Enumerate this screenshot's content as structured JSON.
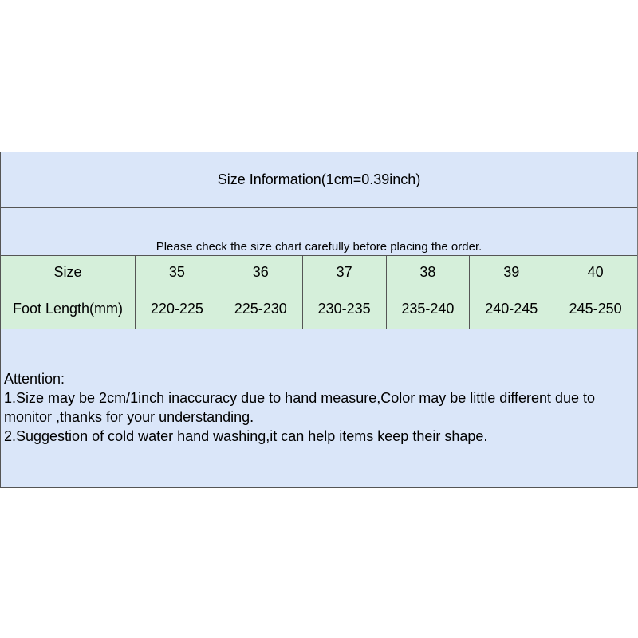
{
  "title": "Size Information(1cm=0.39inch)",
  "notice": "Please check the size chart carefully before placing the order.",
  "table": {
    "size_row": [
      "Size",
      "35",
      "36",
      "37",
      "38",
      "39",
      "40"
    ],
    "length_row": [
      "Foot Length(mm)",
      "220-225",
      "225-230",
      "230-235",
      "235-240",
      "240-245",
      "245-250"
    ]
  },
  "attention": {
    "heading": "Attention:",
    "lines": [
      "1.Size may be 2cm/1inch inaccuracy due to hand measure,Color may be little different due to monitor ,thanks for your understanding.",
      "2.Suggestion of cold water hand washing,it can help items keep their shape."
    ]
  },
  "colors": {
    "header_bg": "#dae6f9",
    "table_bg": "#d5efda",
    "border": "#555555"
  }
}
